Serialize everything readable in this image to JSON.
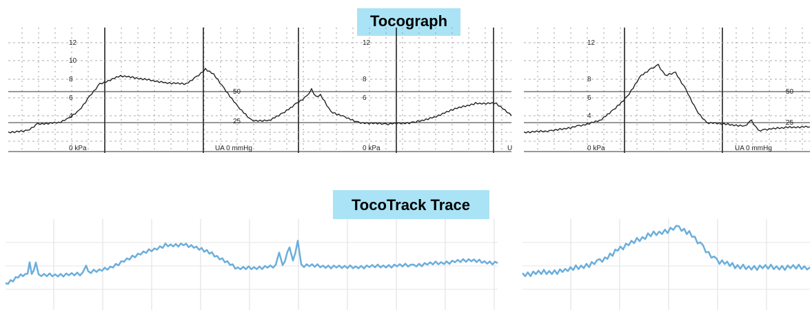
{
  "titles": {
    "tocograph": "Tocograph",
    "tocotrack": "TocoTrack Trace"
  },
  "tocograph_left": {
    "scale_a": [
      "12",
      "10",
      "8",
      "6",
      "4",
      "0 kPa"
    ],
    "unit_a": "UA 0 mmHg",
    "mmhg_a": [
      "50",
      "25"
    ],
    "scale_b": [
      "12",
      "8",
      "6",
      "0 kPa"
    ],
    "unit_b": "U"
  },
  "tocograph_right": {
    "scale": [
      "12",
      "8",
      "6",
      "4",
      "0 kPa"
    ],
    "unit": "UA 0 mmHg",
    "mmhg": [
      "50",
      "25"
    ]
  }
}
